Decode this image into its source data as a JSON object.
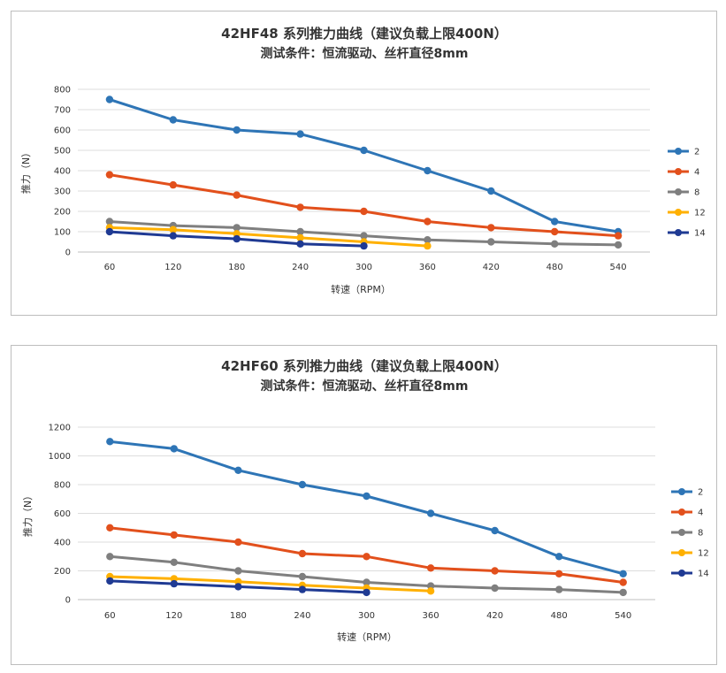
{
  "chart_data": [
    {
      "type": "line",
      "title": "42HF48 系列推力曲线（建议负载上限400N）",
      "subtitle": "测试条件：恒流驱动、丝杆直径8mm",
      "xlabel": "转速（RPM）",
      "ylabel": "推力（N）",
      "categories": [
        60,
        120,
        180,
        240,
        300,
        360,
        420,
        480,
        540
      ],
      "ylim": [
        0,
        800
      ],
      "yticks": [
        0,
        100,
        200,
        300,
        400,
        500,
        600,
        700,
        800
      ],
      "grid": true,
      "legend": "right",
      "series": [
        {
          "name": "2",
          "color": "#2e75b6",
          "values": [
            750,
            650,
            600,
            580,
            500,
            400,
            300,
            150,
            100
          ]
        },
        {
          "name": "4",
          "color": "#e2501c",
          "values": [
            380,
            330,
            280,
            220,
            200,
            150,
            120,
            100,
            80
          ]
        },
        {
          "name": "8",
          "color": "#7f7f7f",
          "values": [
            150,
            130,
            120,
            100,
            80,
            60,
            50,
            40,
            35
          ]
        },
        {
          "name": "12",
          "color": "#ffb000",
          "values": [
            120,
            110,
            90,
            70,
            50,
            30,
            null,
            null,
            null
          ]
        },
        {
          "name": "14",
          "color": "#1f3a93",
          "values": [
            100,
            80,
            65,
            40,
            30,
            null,
            null,
            null,
            null
          ]
        }
      ]
    },
    {
      "type": "line",
      "title": "42HF60 系列推力曲线（建议负载上限400N）",
      "subtitle": "测试条件：恒流驱动、丝杆直径8mm",
      "xlabel": "转速（RPM）",
      "ylabel": "推力（N）",
      "categories": [
        60,
        120,
        180,
        240,
        300,
        360,
        420,
        480,
        540
      ],
      "ylim": [
        0,
        1200
      ],
      "yticks": [
        0,
        200,
        400,
        600,
        800,
        1000,
        1200
      ],
      "grid": true,
      "legend": "right",
      "series": [
        {
          "name": "2",
          "color": "#2e75b6",
          "values": [
            1100,
            1050,
            900,
            800,
            720,
            600,
            480,
            300,
            180
          ]
        },
        {
          "name": "4",
          "color": "#e2501c",
          "values": [
            500,
            450,
            400,
            320,
            300,
            220,
            200,
            180,
            120
          ]
        },
        {
          "name": "8",
          "color": "#7f7f7f",
          "values": [
            300,
            260,
            200,
            160,
            120,
            95,
            80,
            70,
            50
          ]
        },
        {
          "name": "12",
          "color": "#ffb000",
          "values": [
            160,
            145,
            125,
            100,
            80,
            60,
            null,
            null,
            null
          ]
        },
        {
          "name": "14",
          "color": "#1f3a93",
          "values": [
            130,
            110,
            90,
            70,
            50,
            null,
            null,
            null,
            null
          ]
        }
      ]
    }
  ]
}
